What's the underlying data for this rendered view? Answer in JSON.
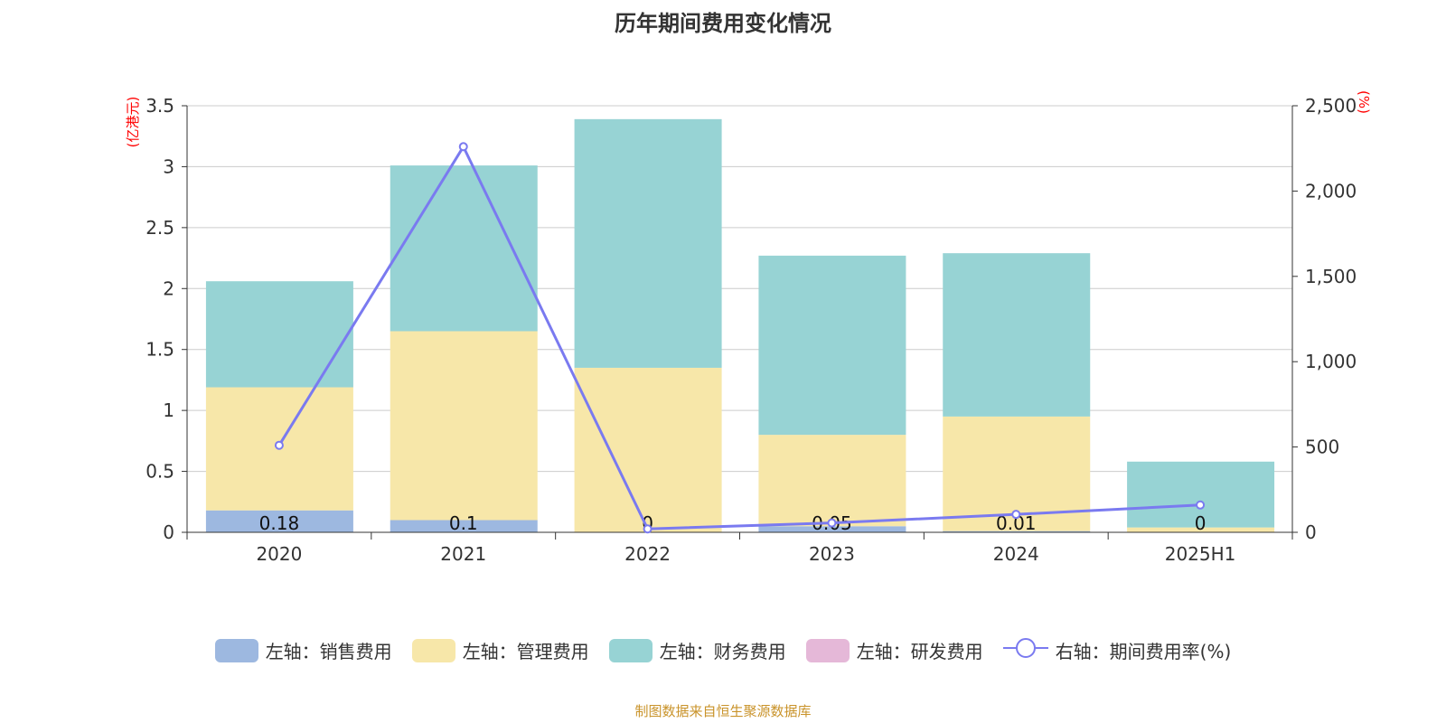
{
  "chart_data": {
    "type": "bar",
    "title": "历年期间费用变化情况",
    "categories": [
      "2020",
      "2021",
      "2022",
      "2023",
      "2024",
      "2025H1"
    ],
    "left_axis": {
      "label": "(亿港元)",
      "ylim": [
        0,
        3.5
      ],
      "ticks": [
        "0",
        "0.5",
        "1",
        "1.5",
        "2",
        "2.5",
        "3",
        "3.5"
      ]
    },
    "right_axis": {
      "label": "(%)",
      "ylim": [
        0,
        2500
      ],
      "ticks": [
        "0",
        "500",
        "1,000",
        "1,500",
        "2,000",
        "2,500"
      ]
    },
    "series": [
      {
        "name": "左轴：销售费用",
        "type": "bar",
        "color": "#9db8e0",
        "values": [
          0.18,
          0.1,
          0,
          0.05,
          0.01,
          0
        ],
        "labels": [
          "0.18",
          "0.1",
          "0",
          "0.05",
          "0.01",
          "0"
        ]
      },
      {
        "name": "左轴：管理费用",
        "type": "bar",
        "color": "#f7e7a9",
        "values": [
          1.01,
          1.55,
          1.35,
          0.75,
          0.94,
          0.04
        ]
      },
      {
        "name": "左轴：财务费用",
        "type": "bar",
        "color": "#97d3d4",
        "values": [
          0.87,
          1.36,
          2.04,
          1.47,
          1.34,
          0.54
        ]
      },
      {
        "name": "左轴：研发费用",
        "type": "bar",
        "color": "#e5b8d8",
        "values": [
          0,
          0,
          0,
          0,
          0,
          0
        ]
      },
      {
        "name": "右轴：期间费用率(%)",
        "type": "line",
        "color": "#7a7af0",
        "values": [
          510,
          2260,
          20,
          55,
          105,
          160
        ]
      }
    ],
    "grid": true,
    "legend": "bottom"
  },
  "source": "制图数据来自恒生聚源数据库"
}
